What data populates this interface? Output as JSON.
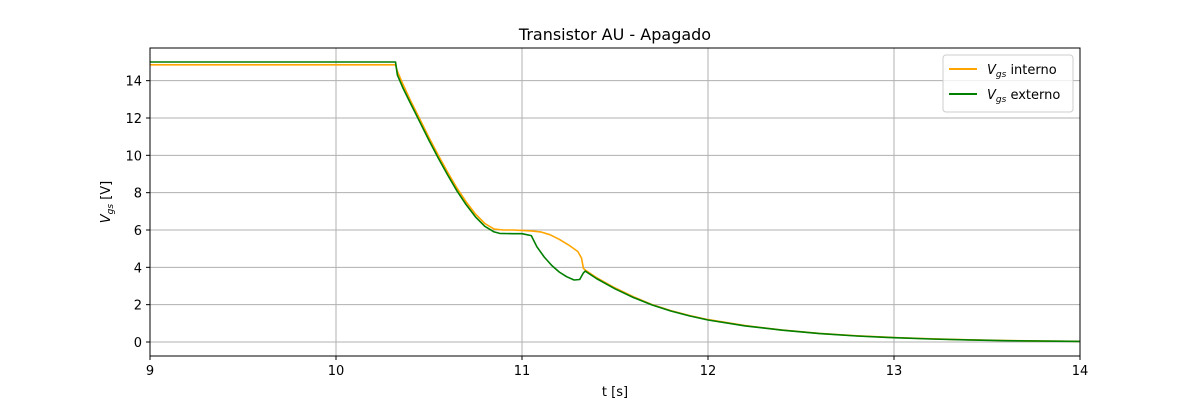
{
  "chart_data": {
    "type": "line",
    "title": "Transistor AU - Apagado",
    "xlabel": "t [s]",
    "ylabel": {
      "main": "V",
      "sub": "gs",
      "unit": " [V]"
    },
    "xlim": [
      9,
      14
    ],
    "ylim": [
      -0.75,
      15.75
    ],
    "xticks": [
      9,
      10,
      11,
      12,
      13,
      14
    ],
    "yticks": [
      0,
      2,
      4,
      6,
      8,
      10,
      12,
      14
    ],
    "grid": true,
    "legend_position": "upper right",
    "series": [
      {
        "name": {
          "main": "V",
          "sub": "gs",
          "suffix": " interno"
        },
        "color": "#ffa500",
        "x": [
          9.0,
          10.32,
          10.33,
          10.36,
          10.4,
          10.45,
          10.5,
          10.55,
          10.6,
          10.65,
          10.7,
          10.75,
          10.8,
          10.85,
          10.9,
          10.95,
          11.0,
          11.05,
          11.1,
          11.15,
          11.2,
          11.25,
          11.3,
          11.32,
          11.33,
          11.34,
          11.4,
          11.5,
          11.6,
          11.7,
          11.8,
          11.9,
          12.0,
          12.2,
          12.4,
          12.6,
          12.8,
          13.0,
          13.2,
          13.4,
          13.6,
          13.8,
          14.0
        ],
        "y": [
          14.85,
          14.85,
          14.5,
          13.8,
          12.95,
          11.95,
          10.95,
          10.0,
          9.1,
          8.25,
          7.5,
          6.85,
          6.35,
          6.05,
          6.0,
          6.0,
          5.98,
          5.95,
          5.9,
          5.75,
          5.5,
          5.2,
          4.85,
          4.5,
          3.95,
          3.85,
          3.45,
          2.9,
          2.42,
          2.0,
          1.68,
          1.42,
          1.2,
          0.88,
          0.64,
          0.46,
          0.33,
          0.24,
          0.17,
          0.12,
          0.08,
          0.05,
          0.04
        ]
      },
      {
        "name": {
          "main": "V",
          "sub": "gs",
          "suffix": " externo"
        },
        "color": "#007f00",
        "x": [
          9.0,
          10.32,
          10.33,
          10.36,
          10.4,
          10.45,
          10.5,
          10.55,
          10.6,
          10.65,
          10.7,
          10.75,
          10.8,
          10.85,
          10.88,
          10.95,
          11.0,
          11.05,
          11.08,
          11.12,
          11.16,
          11.2,
          11.24,
          11.28,
          11.31,
          11.33,
          11.34,
          11.4,
          11.5,
          11.6,
          11.7,
          11.8,
          11.9,
          12.0,
          12.2,
          12.4,
          12.6,
          12.8,
          13.0,
          13.2,
          13.4,
          13.6,
          13.8,
          14.0
        ],
        "y": [
          15.0,
          15.0,
          14.3,
          13.6,
          12.8,
          11.8,
          10.8,
          9.85,
          8.95,
          8.1,
          7.35,
          6.7,
          6.2,
          5.9,
          5.82,
          5.8,
          5.8,
          5.7,
          5.1,
          4.55,
          4.1,
          3.75,
          3.5,
          3.32,
          3.35,
          3.7,
          3.8,
          3.4,
          2.85,
          2.38,
          1.98,
          1.66,
          1.4,
          1.18,
          0.86,
          0.63,
          0.45,
          0.32,
          0.23,
          0.16,
          0.11,
          0.07,
          0.05,
          0.03
        ]
      }
    ]
  }
}
